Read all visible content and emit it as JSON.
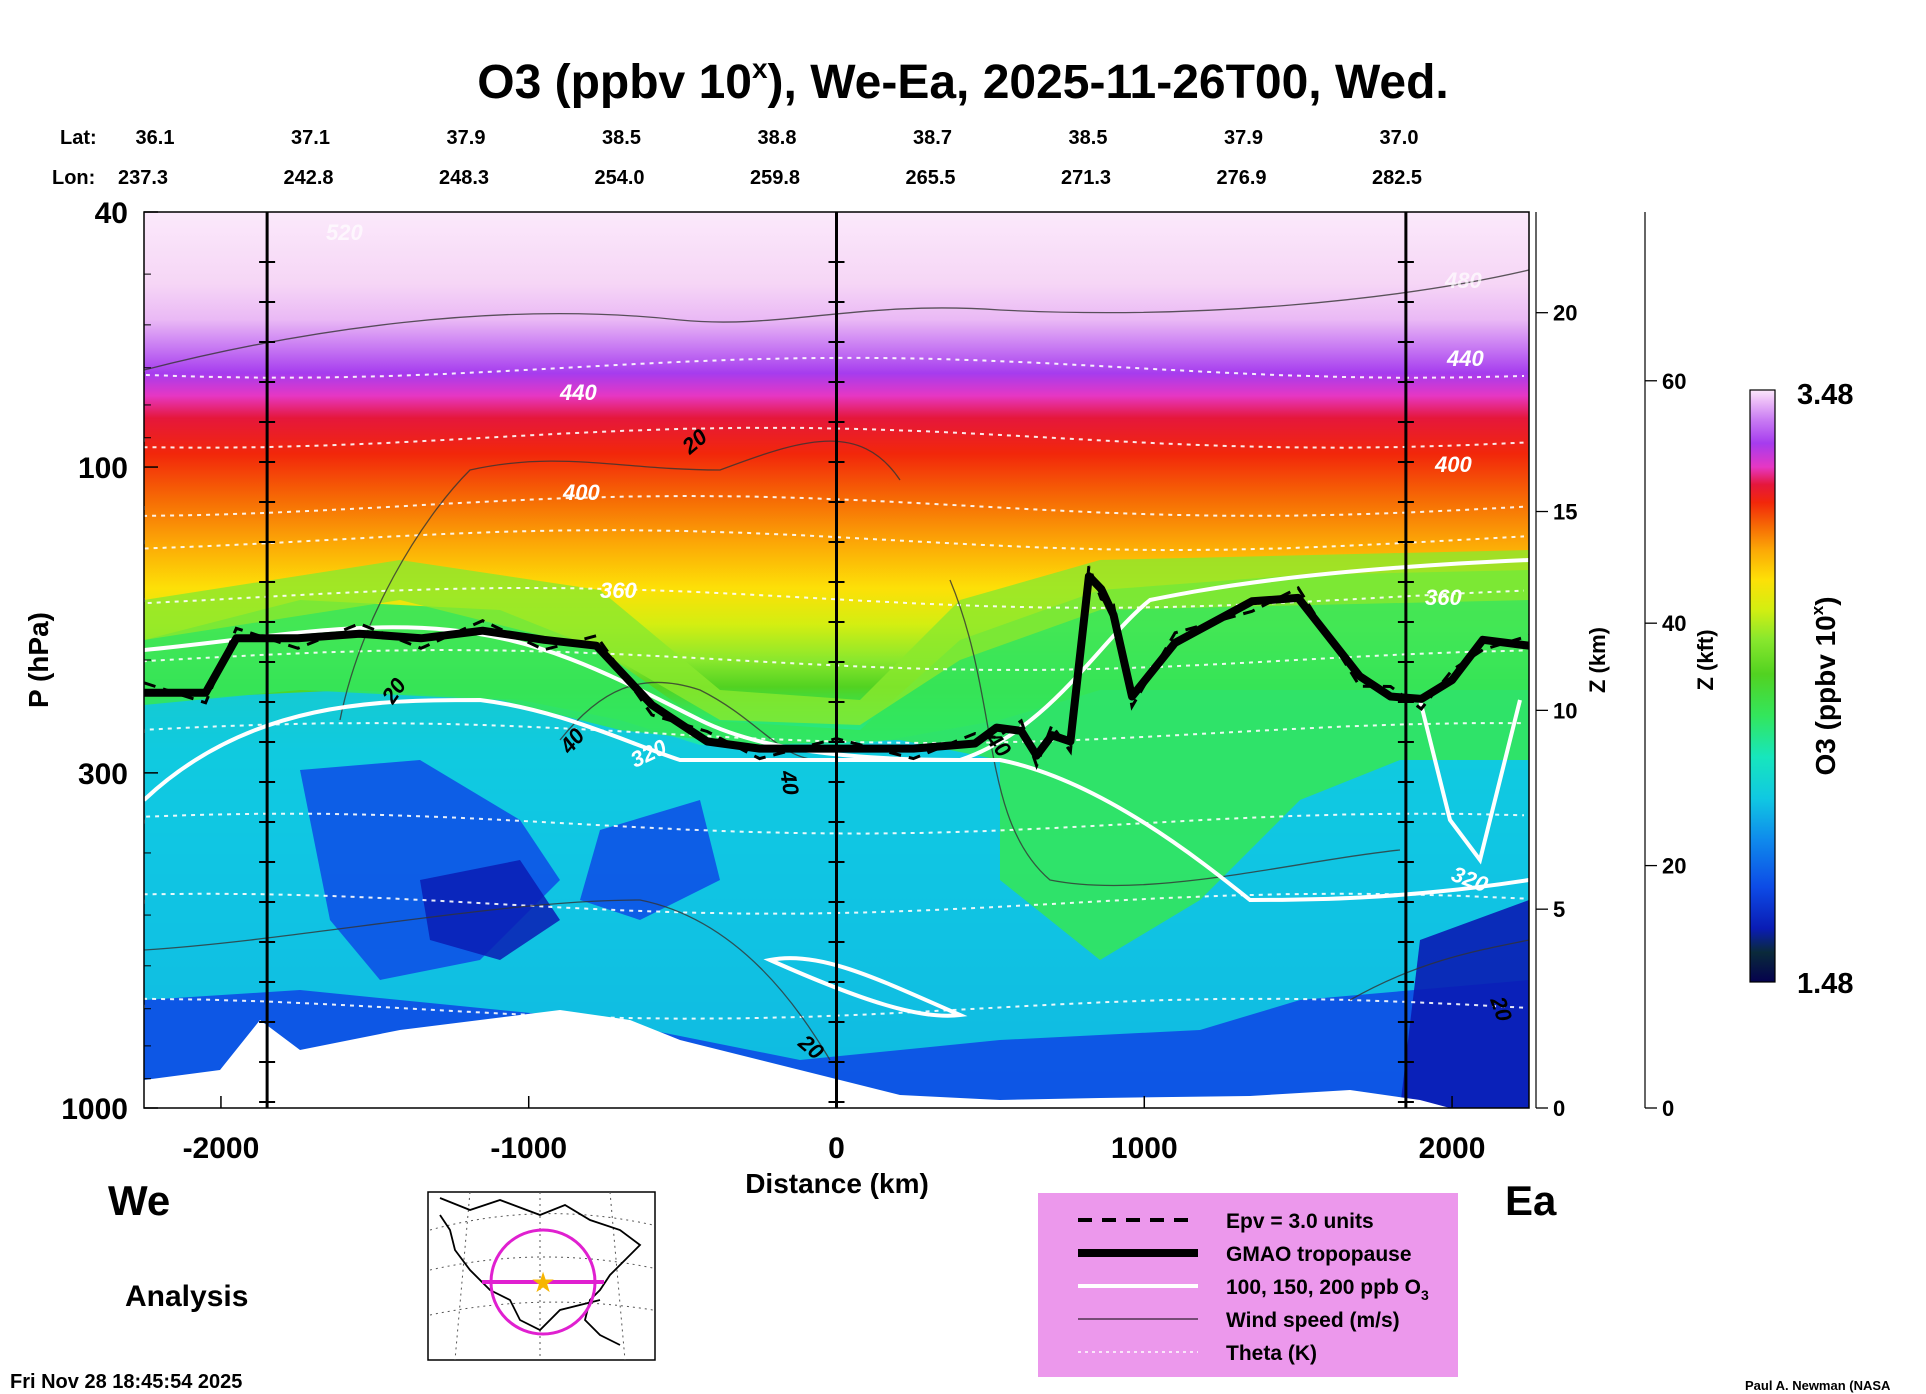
{
  "title": {
    "prefix": "O3 (ppbv 10",
    "sup": "x",
    "suffix": "), We-Ea, 2025-11-26T00, Wed."
  },
  "coord_header": {
    "lat_label": "Lat:",
    "lon_label": "Lon:",
    "lat": [
      "36.1",
      "37.1",
      "37.9",
      "38.5",
      "38.8",
      "38.7",
      "38.5",
      "37.9",
      "37.0"
    ],
    "lon": [
      "237.3",
      "242.8",
      "248.3",
      "254.0",
      "259.8",
      "265.5",
      "271.3",
      "276.9",
      "282.5"
    ]
  },
  "direction": {
    "west": "We",
    "east": "Ea"
  },
  "analysis_label": "Analysis",
  "timestamp": "Fri Nov 28 18:45:54 2025",
  "credit": "Paul A. Newman (NASA",
  "chart_data": {
    "type": "heatmap",
    "title": "O3 (ppbv 10x), We-Ea, 2025-11-26T00, Wed.",
    "xlabel": "Distance (km)",
    "ylabel": "P (hPa)",
    "xlim": [
      -2250,
      2250
    ],
    "ylim": [
      1000,
      40
    ],
    "y_scale": "log",
    "x_ticks": [
      "-2000",
      "-1000",
      "0",
      "1000",
      "2000"
    ],
    "x_tick_values": [
      -2000,
      -1000,
      0,
      1000,
      2000
    ],
    "y_ticks": [
      "40",
      "100",
      "300",
      "1000"
    ],
    "y_tick_values": [
      40,
      100,
      300,
      1000
    ],
    "z_axis": {
      "label": "Z (km)",
      "ticks": [
        "0",
        "5",
        "10",
        "15",
        "20"
      ]
    },
    "zkft_axis": {
      "label": "Z (kft)",
      "ticks": [
        "0",
        "20",
        "40",
        "60"
      ]
    },
    "colorbar": {
      "label": "O3 (ppbv 10",
      "label_sup": "x",
      "label_end": ")",
      "min": "1.48",
      "max": "3.48"
    },
    "vertical_markers_km": [
      -1850,
      0,
      1850
    ],
    "tropopause": {
      "x": [
        -2250,
        -2050,
        -1950,
        -1750,
        -1550,
        -1350,
        -1150,
        -950,
        -780,
        -600,
        -420,
        -250,
        0,
        250,
        450,
        520,
        600,
        650,
        700,
        760,
        820,
        860,
        900,
        960,
        1100,
        1350,
        1500,
        1700,
        1800,
        1900,
        2000,
        2100,
        2250
      ],
      "p": [
        225,
        225,
        185,
        185,
        182,
        185,
        180,
        186,
        190,
        235,
        268,
        275,
        275,
        275,
        270,
        255,
        258,
        282,
        262,
        268,
        148,
        155,
        170,
        228,
        188,
        162,
        160,
        212,
        228,
        230,
        215,
        186,
        190
      ]
    },
    "theta_labels": [
      "320",
      "360",
      "400",
      "440",
      "480",
      "520"
    ],
    "wind_labels": [
      "20",
      "40"
    ],
    "legend": {
      "entries": [
        {
          "label": "Epv = 3.0 units",
          "style": "dashed"
        },
        {
          "label": "GMAO tropopause",
          "style": "thick"
        },
        {
          "label": "100, 150, 200 ppb O",
          "sub": "3",
          "style": "white"
        },
        {
          "label": "Wind speed (m/s)",
          "style": "thin"
        },
        {
          "label": "Theta (K)",
          "style": "dotted-white"
        }
      ],
      "background": "#ec98ec"
    },
    "colors": [
      "#05024e",
      "#0a1cb4",
      "#0d4be6",
      "#0f8aec",
      "#10c8e2",
      "#17e6bd",
      "#33e65c",
      "#52d221",
      "#8ae82d",
      "#d4ee11",
      "#fde007",
      "#fca806",
      "#f66a05",
      "#f2270a",
      "#e5173b",
      "#e637c4",
      "#a63cee",
      "#c97cf3",
      "#eab9f7",
      "#fbe7fb"
    ]
  }
}
